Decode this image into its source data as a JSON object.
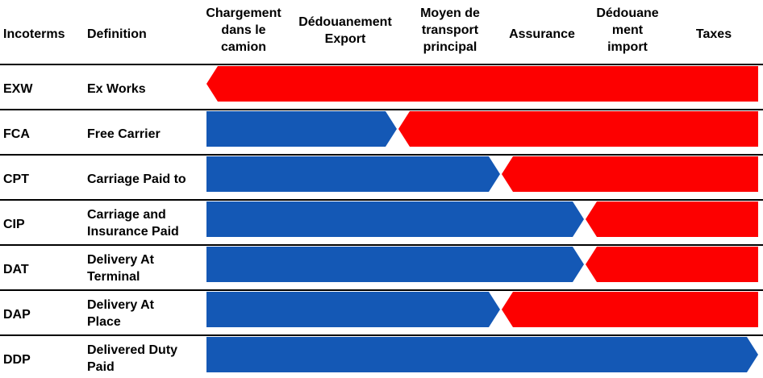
{
  "header": {
    "incoterms": "Incoterms",
    "definition": "Definition",
    "columns": [
      {
        "lines": [
          "Chargement",
          "dans le",
          "camion"
        ]
      },
      {
        "lines": [
          "Dédouanement",
          "Export"
        ]
      },
      {
        "lines": [
          "Moyen de",
          "transport",
          "principal"
        ]
      },
      {
        "lines": [
          "Assurance"
        ]
      },
      {
        "lines": [
          "Dédouane",
          "ment",
          "import"
        ]
      },
      {
        "lines": [
          "Taxes"
        ]
      }
    ]
  },
  "colors": {
    "seller": "#1458b5",
    "buyer": "#fd0000"
  },
  "rows": [
    {
      "code": "EXW",
      "definition": "Ex Works",
      "seller_until": 0
    },
    {
      "code": "FCA",
      "definition": "Free Carrier",
      "seller_until": 2
    },
    {
      "code": "CPT",
      "definition": "Carriage Paid to",
      "seller_until": 3
    },
    {
      "code": "CIP",
      "definition": "Carriage and Insurance Paid",
      "seller_until": 4
    },
    {
      "code": "DAT",
      "definition": "Delivery At Terminal",
      "seller_until": 4
    },
    {
      "code": "DAP",
      "definition": "Delivery At Place",
      "seller_until": 3
    },
    {
      "code": "DDP",
      "definition": "Delivered Duty Paid",
      "seller_until": 6
    }
  ]
}
